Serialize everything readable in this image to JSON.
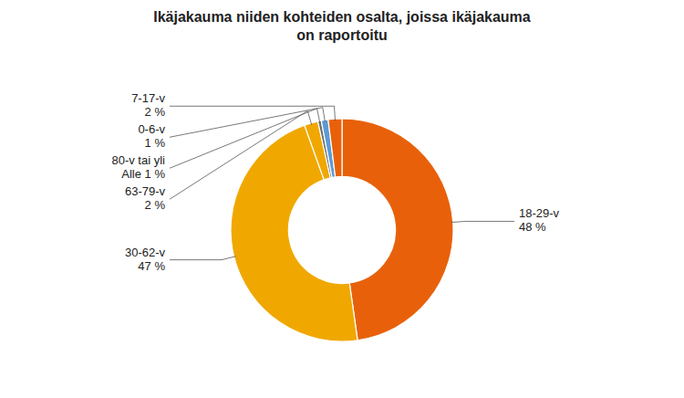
{
  "chart_data": {
    "type": "donut",
    "title": "Ikäjakauma niiden kohteiden osalta, joissa ikäjakauma\non raportoitu",
    "categories": [
      "18-29-v",
      "30-62-v",
      "63-79-v",
      "80-v tai yli",
      "0-6-v",
      "7-17-v"
    ],
    "values": [
      48,
      47,
      2,
      0.5,
      1,
      2
    ],
    "value_labels": [
      "48 %",
      "47 %",
      "2 %",
      "Alle 1 %",
      "1 %",
      "2 %"
    ],
    "data_labels": true,
    "colors": [
      "#E8610A",
      "#F0A800",
      "#F0A800",
      "#6D6D6D",
      "#5B9BD5",
      "#E8610A"
    ]
  }
}
